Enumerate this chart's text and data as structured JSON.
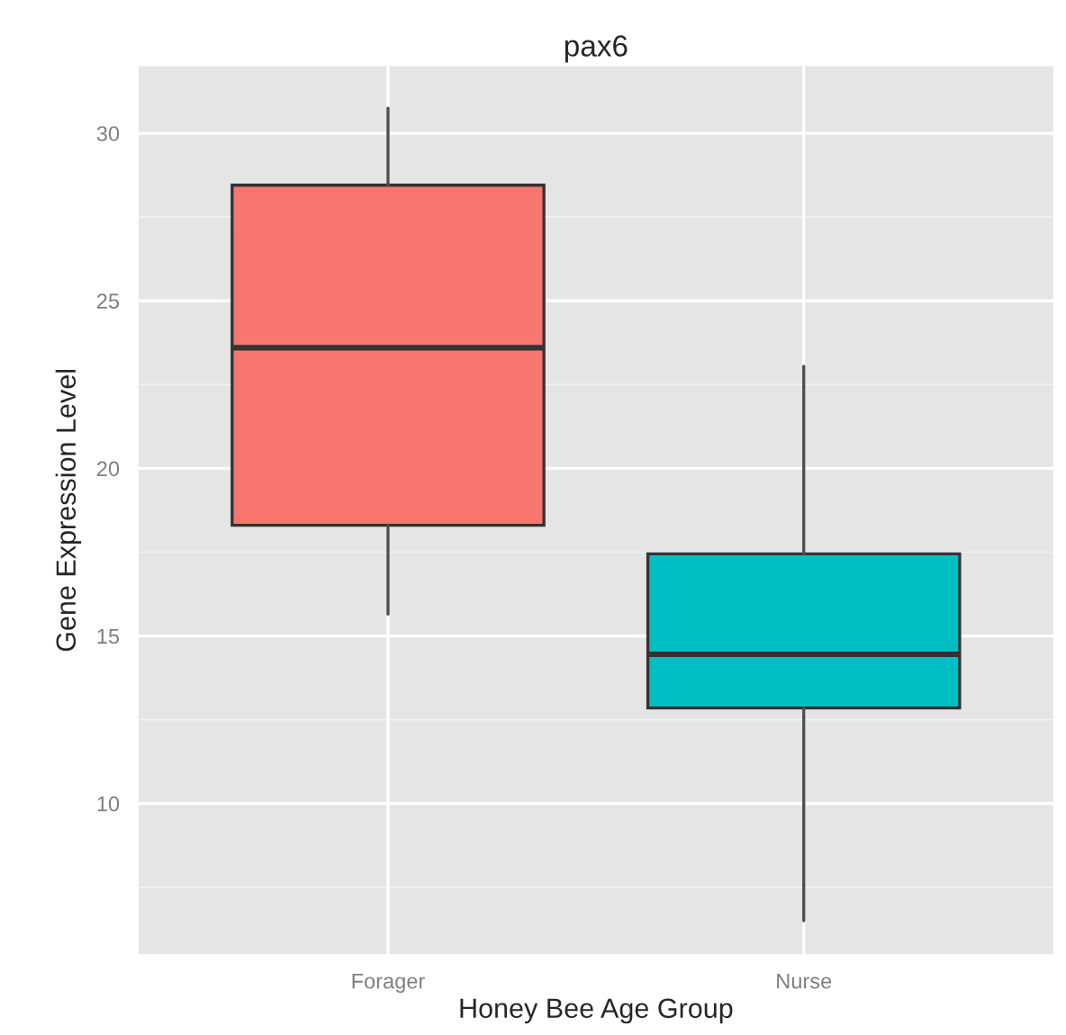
{
  "chart_data": {
    "type": "box",
    "title": "pax6",
    "xlabel": "Honey Bee Age Group",
    "ylabel": "Gene Expression Level",
    "categories": [
      "Forager",
      "Nurse"
    ],
    "colors": [
      "#f8766d",
      "#00bfc4"
    ],
    "boxes": [
      {
        "low": 15.65,
        "q1": 18.3,
        "median": 23.6,
        "q3": 28.45,
        "high": 30.75
      },
      {
        "low": 6.5,
        "q1": 12.85,
        "median": 14.45,
        "q3": 17.45,
        "high": 23.05
      }
    ],
    "ylim": [
      5.5,
      32.0
    ],
    "yticks": [
      10,
      15,
      20,
      25,
      30
    ],
    "grid": true
  }
}
